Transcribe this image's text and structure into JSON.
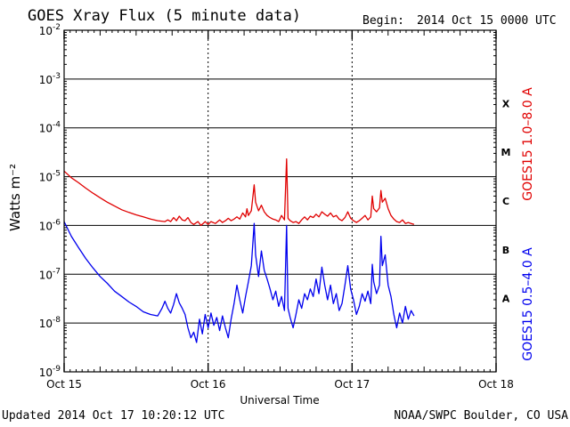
{
  "header": {
    "title": "GOES Xray Flux (5 minute data)",
    "begin_label": "Begin:",
    "begin_value": "2014 Oct 15 0000 UTC"
  },
  "footer": {
    "updated": "Updated 2014 Oct 17 10:20:12 UTC",
    "credit": "NOAA/SWPC Boulder, CO USA"
  },
  "colors": {
    "long_channel": "#e00000",
    "short_channel": "#0000ee",
    "axis": "#000000"
  },
  "chart_data": {
    "type": "line",
    "title": "GOES Xray Flux (5 minute data)",
    "xlabel": "Universal Time",
    "ylabel": "Watts m⁻²",
    "y_scale": "log",
    "ylim": [
      1e-09,
      0.01
    ],
    "xlim": [
      0,
      3
    ],
    "x_unit": "days since 2014 Oct 15 0000 UTC",
    "x_ticks": [
      {
        "value": 0,
        "label": "Oct 15"
      },
      {
        "value": 1,
        "label": "Oct 16"
      },
      {
        "value": 2,
        "label": "Oct 17"
      },
      {
        "value": 3,
        "label": "Oct 18"
      }
    ],
    "y_ticks": [
      {
        "value": 1e-09,
        "base": "10",
        "exp": "-9"
      },
      {
        "value": 1e-08,
        "base": "10",
        "exp": "-8"
      },
      {
        "value": 1e-07,
        "base": "10",
        "exp": "-7"
      },
      {
        "value": 1e-06,
        "base": "10",
        "exp": "-6"
      },
      {
        "value": 1e-05,
        "base": "10",
        "exp": "-5"
      },
      {
        "value": 0.0001,
        "base": "10",
        "exp": "-4"
      },
      {
        "value": 0.001,
        "base": "10",
        "exp": "-3"
      },
      {
        "value": 0.01,
        "base": "10",
        "exp": "-2"
      }
    ],
    "grid": "horizontal lines at each decade",
    "flare_classes": [
      {
        "label": "X",
        "value": 0.000316
      },
      {
        "label": "M",
        "value": 3.16e-05
      },
      {
        "label": "C",
        "value": 3.16e-06
      },
      {
        "label": "B",
        "value": 3.16e-07
      },
      {
        "label": "A",
        "value": 3.16e-08
      }
    ],
    "series": [
      {
        "name": "GOES15 1.0–8.0 A",
        "points": [
          [
            0.0,
            1.3e-05
          ],
          [
            0.05,
            9.5e-06
          ],
          [
            0.1,
            7.5e-06
          ],
          [
            0.15,
            5.8e-06
          ],
          [
            0.2,
            4.6e-06
          ],
          [
            0.25,
            3.7e-06
          ],
          [
            0.3,
            3e-06
          ],
          [
            0.35,
            2.5e-06
          ],
          [
            0.4,
            2.1e-06
          ],
          [
            0.45,
            1.85e-06
          ],
          [
            0.5,
            1.65e-06
          ],
          [
            0.55,
            1.5e-06
          ],
          [
            0.6,
            1.35e-06
          ],
          [
            0.65,
            1.25e-06
          ],
          [
            0.7,
            1.2e-06
          ],
          [
            0.72,
            1.3e-06
          ],
          [
            0.74,
            1.2e-06
          ],
          [
            0.76,
            1.45e-06
          ],
          [
            0.78,
            1.25e-06
          ],
          [
            0.8,
            1.55e-06
          ],
          [
            0.82,
            1.3e-06
          ],
          [
            0.84,
            1.25e-06
          ],
          [
            0.86,
            1.45e-06
          ],
          [
            0.88,
            1.15e-06
          ],
          [
            0.9,
            1.05e-06
          ],
          [
            0.93,
            1.2e-06
          ],
          [
            0.95,
            1e-06
          ],
          [
            0.98,
            1.2e-06
          ],
          [
            1.0,
            1.05e-06
          ],
          [
            1.02,
            1.2e-06
          ],
          [
            1.05,
            1.1e-06
          ],
          [
            1.08,
            1.3e-06
          ],
          [
            1.1,
            1.15e-06
          ],
          [
            1.12,
            1.25e-06
          ],
          [
            1.14,
            1.4e-06
          ],
          [
            1.16,
            1.25e-06
          ],
          [
            1.18,
            1.35e-06
          ],
          [
            1.2,
            1.5e-06
          ],
          [
            1.22,
            1.35e-06
          ],
          [
            1.24,
            1.8e-06
          ],
          [
            1.26,
            1.5e-06
          ],
          [
            1.27,
            2.2e-06
          ],
          [
            1.28,
            1.6e-06
          ],
          [
            1.3,
            2e-06
          ],
          [
            1.32,
            6.8e-06
          ],
          [
            1.33,
            3e-06
          ],
          [
            1.35,
            2e-06
          ],
          [
            1.37,
            2.6e-06
          ],
          [
            1.39,
            1.9e-06
          ],
          [
            1.41,
            1.6e-06
          ],
          [
            1.43,
            1.45e-06
          ],
          [
            1.45,
            1.35e-06
          ],
          [
            1.47,
            1.3e-06
          ],
          [
            1.49,
            1.2e-06
          ],
          [
            1.51,
            1.6e-06
          ],
          [
            1.53,
            1.3e-06
          ],
          [
            1.545,
            2.3e-05
          ],
          [
            1.555,
            1.4e-06
          ],
          [
            1.57,
            1.25e-06
          ],
          [
            1.59,
            1.15e-06
          ],
          [
            1.61,
            1.2e-06
          ],
          [
            1.63,
            1.1e-06
          ],
          [
            1.65,
            1.3e-06
          ],
          [
            1.67,
            1.5e-06
          ],
          [
            1.69,
            1.3e-06
          ],
          [
            1.71,
            1.55e-06
          ],
          [
            1.73,
            1.45e-06
          ],
          [
            1.75,
            1.7e-06
          ],
          [
            1.77,
            1.5e-06
          ],
          [
            1.79,
            1.9e-06
          ],
          [
            1.81,
            1.7e-06
          ],
          [
            1.83,
            1.55e-06
          ],
          [
            1.85,
            1.8e-06
          ],
          [
            1.87,
            1.5e-06
          ],
          [
            1.89,
            1.6e-06
          ],
          [
            1.91,
            1.35e-06
          ],
          [
            1.93,
            1.25e-06
          ],
          [
            1.95,
            1.45e-06
          ],
          [
            1.97,
            1.9e-06
          ],
          [
            1.99,
            1.4e-06
          ],
          [
            2.01,
            1.25e-06
          ],
          [
            2.03,
            1.15e-06
          ],
          [
            2.05,
            1.25e-06
          ],
          [
            2.07,
            1.4e-06
          ],
          [
            2.09,
            1.6e-06
          ],
          [
            2.11,
            1.3e-06
          ],
          [
            2.13,
            1.5e-06
          ],
          [
            2.14,
            4e-06
          ],
          [
            2.15,
            2.2e-06
          ],
          [
            2.17,
            1.9e-06
          ],
          [
            2.19,
            2.3e-06
          ],
          [
            2.2,
            5.2e-06
          ],
          [
            2.21,
            3e-06
          ],
          [
            2.23,
            3.6e-06
          ],
          [
            2.25,
            2.2e-06
          ],
          [
            2.27,
            1.6e-06
          ],
          [
            2.29,
            1.35e-06
          ],
          [
            2.31,
            1.2e-06
          ],
          [
            2.33,
            1.15e-06
          ],
          [
            2.35,
            1.3e-06
          ],
          [
            2.37,
            1.1e-06
          ],
          [
            2.39,
            1.15e-06
          ],
          [
            2.41,
            1.1e-06
          ],
          [
            2.43,
            1.05e-06
          ]
        ]
      },
      {
        "name": "GOES15 0.5–4.0 A",
        "points": [
          [
            0.0,
            1.2e-06
          ],
          [
            0.05,
            6e-07
          ],
          [
            0.1,
            3.5e-07
          ],
          [
            0.15,
            2.1e-07
          ],
          [
            0.2,
            1.35e-07
          ],
          [
            0.25,
            9e-08
          ],
          [
            0.3,
            6.5e-08
          ],
          [
            0.35,
            4.5e-08
          ],
          [
            0.4,
            3.5e-08
          ],
          [
            0.45,
            2.7e-08
          ],
          [
            0.5,
            2.2e-08
          ],
          [
            0.55,
            1.7e-08
          ],
          [
            0.6,
            1.5e-08
          ],
          [
            0.65,
            1.4e-08
          ],
          [
            0.68,
            2e-08
          ],
          [
            0.7,
            2.8e-08
          ],
          [
            0.72,
            2e-08
          ],
          [
            0.74,
            1.6e-08
          ],
          [
            0.76,
            2.4e-08
          ],
          [
            0.78,
            4e-08
          ],
          [
            0.8,
            2.6e-08
          ],
          [
            0.82,
            2e-08
          ],
          [
            0.84,
            1.5e-08
          ],
          [
            0.86,
            8e-09
          ],
          [
            0.88,
            5e-09
          ],
          [
            0.9,
            6.5e-09
          ],
          [
            0.92,
            4e-09
          ],
          [
            0.94,
            1.2e-08
          ],
          [
            0.96,
            6e-09
          ],
          [
            0.98,
            1.5e-08
          ],
          [
            1.0,
            8e-09
          ],
          [
            1.02,
            1.6e-08
          ],
          [
            1.04,
            9e-09
          ],
          [
            1.06,
            1.3e-08
          ],
          [
            1.08,
            7e-09
          ],
          [
            1.1,
            1.4e-08
          ],
          [
            1.12,
            8e-09
          ],
          [
            1.14,
            5e-09
          ],
          [
            1.16,
            1.2e-08
          ],
          [
            1.18,
            2.5e-08
          ],
          [
            1.2,
            6e-08
          ],
          [
            1.22,
            3e-08
          ],
          [
            1.24,
            1.6e-08
          ],
          [
            1.26,
            3.5e-08
          ],
          [
            1.28,
            7e-08
          ],
          [
            1.3,
            1.5e-07
          ],
          [
            1.32,
            1.1e-06
          ],
          [
            1.33,
            2.5e-07
          ],
          [
            1.35,
            9e-08
          ],
          [
            1.37,
            3e-07
          ],
          [
            1.39,
            1.2e-07
          ],
          [
            1.41,
            8e-08
          ],
          [
            1.43,
            5e-08
          ],
          [
            1.45,
            3e-08
          ],
          [
            1.47,
            4.5e-08
          ],
          [
            1.49,
            2.2e-08
          ],
          [
            1.51,
            3.5e-08
          ],
          [
            1.53,
            1.8e-08
          ],
          [
            1.545,
            1e-06
          ],
          [
            1.555,
            2e-08
          ],
          [
            1.57,
            1.3e-08
          ],
          [
            1.59,
            8e-09
          ],
          [
            1.61,
            1.5e-08
          ],
          [
            1.63,
            3e-08
          ],
          [
            1.65,
            2e-08
          ],
          [
            1.67,
            4e-08
          ],
          [
            1.69,
            3e-08
          ],
          [
            1.71,
            5e-08
          ],
          [
            1.73,
            3.5e-08
          ],
          [
            1.75,
            8e-08
          ],
          [
            1.77,
            4e-08
          ],
          [
            1.79,
            1.4e-07
          ],
          [
            1.81,
            6e-08
          ],
          [
            1.83,
            3e-08
          ],
          [
            1.85,
            6e-08
          ],
          [
            1.87,
            2.5e-08
          ],
          [
            1.89,
            4e-08
          ],
          [
            1.91,
            1.8e-08
          ],
          [
            1.93,
            2.5e-08
          ],
          [
            1.95,
            6e-08
          ],
          [
            1.97,
            1.5e-07
          ],
          [
            1.99,
            5e-08
          ],
          [
            2.01,
            3e-08
          ],
          [
            2.03,
            1.5e-08
          ],
          [
            2.05,
            2.2e-08
          ],
          [
            2.07,
            4e-08
          ],
          [
            2.09,
            2.8e-08
          ],
          [
            2.11,
            4.5e-08
          ],
          [
            2.13,
            2.5e-08
          ],
          [
            2.14,
            1.6e-07
          ],
          [
            2.15,
            7e-08
          ],
          [
            2.17,
            4e-08
          ],
          [
            2.19,
            6e-08
          ],
          [
            2.2,
            6e-07
          ],
          [
            2.21,
            1.5e-07
          ],
          [
            2.23,
            2.5e-07
          ],
          [
            2.25,
            6e-08
          ],
          [
            2.27,
            3.5e-08
          ],
          [
            2.29,
            1.5e-08
          ],
          [
            2.31,
            8e-09
          ],
          [
            2.33,
            1.6e-08
          ],
          [
            2.35,
            1e-08
          ],
          [
            2.37,
            2.2e-08
          ],
          [
            2.39,
            1.2e-08
          ],
          [
            2.41,
            1.8e-08
          ],
          [
            2.43,
            1.4e-08
          ]
        ]
      }
    ]
  }
}
